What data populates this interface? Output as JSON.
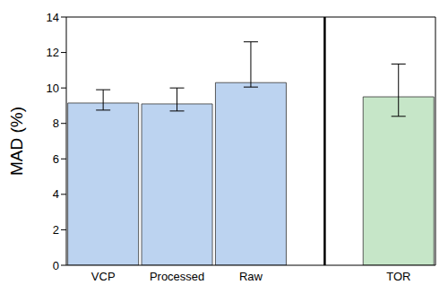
{
  "chart_data": {
    "type": "bar",
    "categories": [
      "VCP",
      "Processed",
      "Raw",
      null,
      "TOR"
    ],
    "values": [
      9.15,
      9.1,
      10.3,
      null,
      9.5
    ],
    "errors": {
      "minus": [
        0.4,
        0.4,
        0.25,
        null,
        1.1
      ],
      "plus": [
        0.75,
        0.9,
        2.3,
        null,
        1.85
      ]
    },
    "colors": [
      "#bcd3f0",
      "#bcd3f0",
      "#bcd3f0",
      null,
      "#c6e6c8"
    ],
    "y_label": "MAD (%)",
    "ylim": [
      0,
      14
    ],
    "yticks": [
      0,
      2,
      4,
      6,
      8,
      10,
      12,
      14
    ],
    "grid": false
  }
}
